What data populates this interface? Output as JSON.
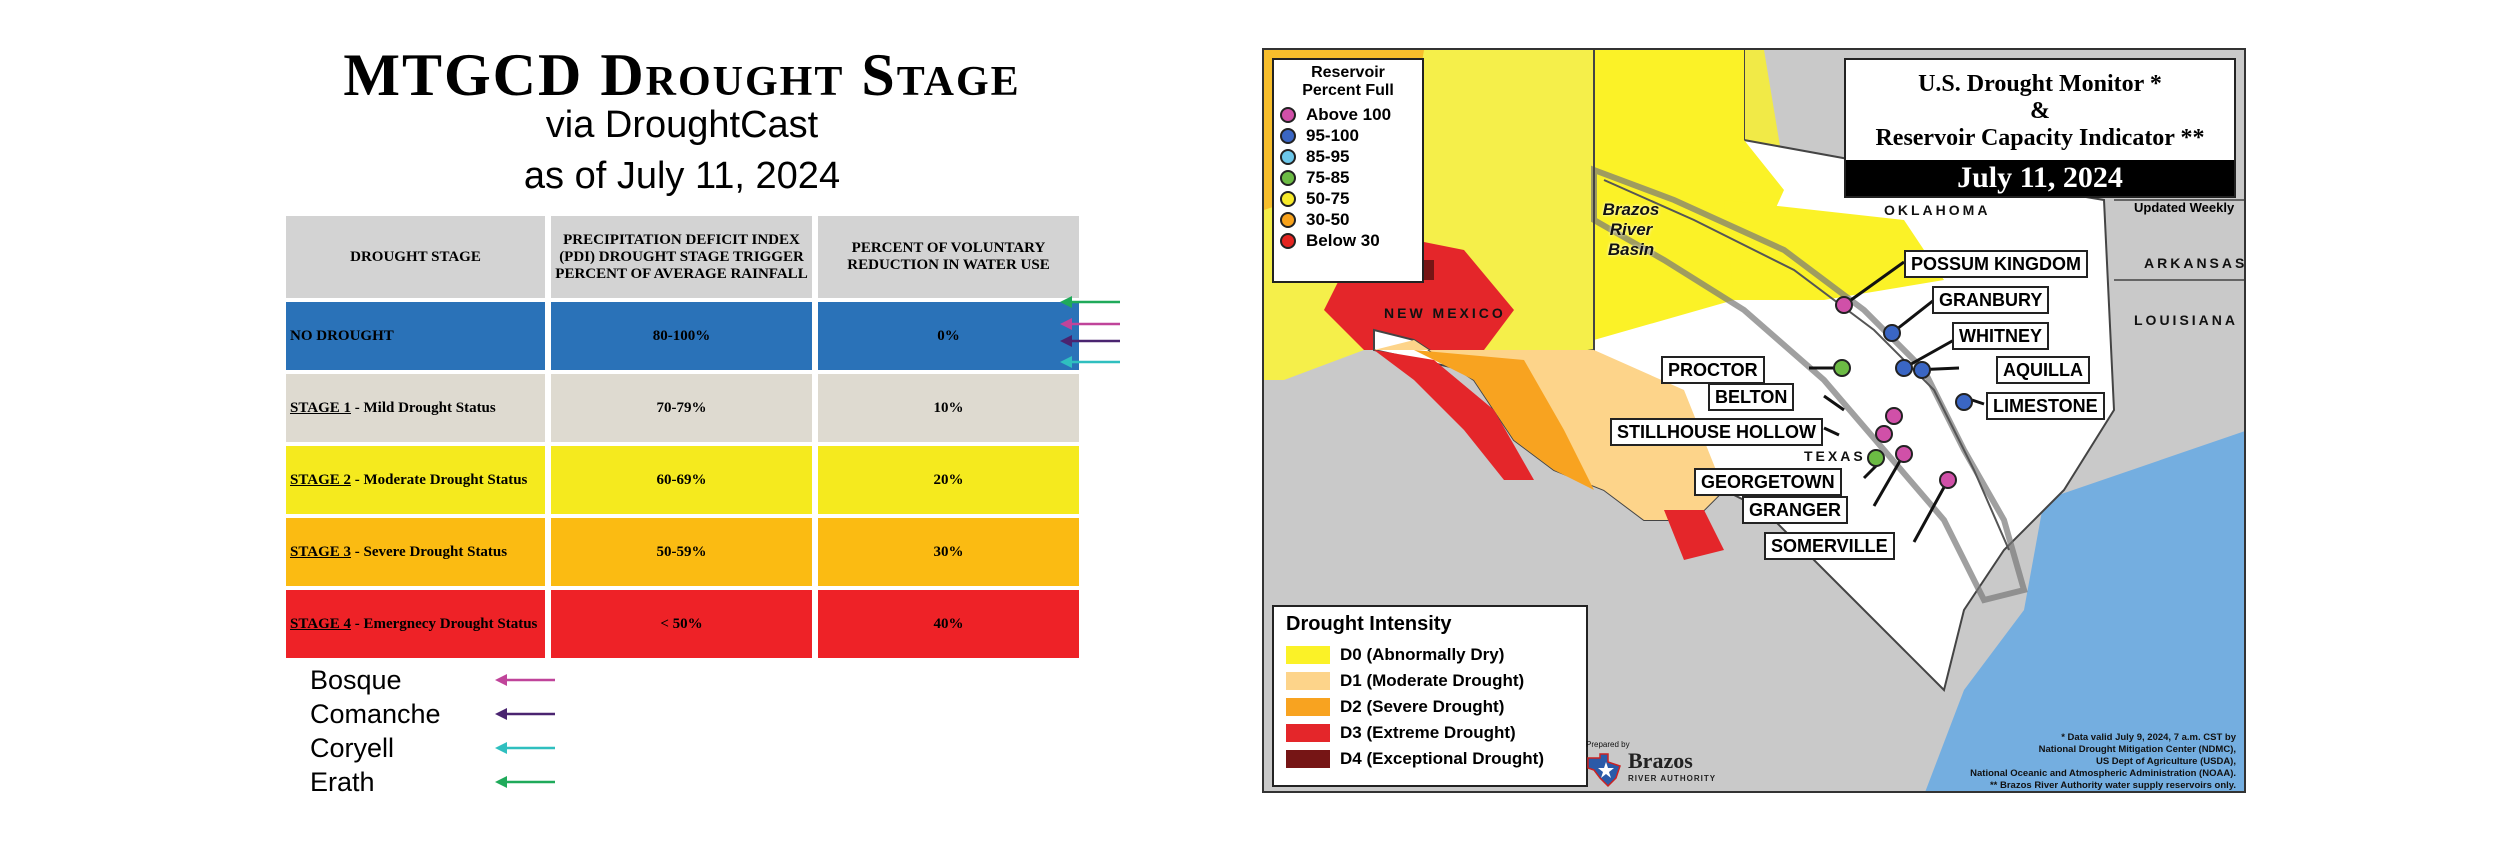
{
  "left": {
    "title": "MTGCD Drought Stage",
    "subtitle1": "via DroughtCast",
    "subtitle2": "as of July 11, 2024",
    "table": {
      "headers": [
        "DROUGHT STAGE",
        "PRECIPITATION DEFICIT INDEX (PDI) DROUGHT STAGE TRIGGER PERCENT OF AVERAGE RAINFALL",
        "PERCENT OF VOLUNTARY REDUCTION IN WATER USE"
      ],
      "rows": [
        {
          "stage": "",
          "label": "NO DROUGHT",
          "pdi": "80-100%",
          "reduction": "0%",
          "color": "#2a72b8"
        },
        {
          "stage": "STAGE 1",
          "label": " - Mild Drought Status",
          "pdi": "70-79%",
          "reduction": "10%",
          "color": "#dedad0"
        },
        {
          "stage": "STAGE 2",
          "label": " - Moderate Drought Status",
          "pdi": "60-69%",
          "reduction": "20%",
          "color": "#f5ea1e"
        },
        {
          "stage": "STAGE 3",
          "label": " - Severe Drought Status",
          "pdi": "50-59%",
          "reduction": "30%",
          "color": "#fbbb12"
        },
        {
          "stage": "STAGE 4",
          "label": " - Emergnecy Drought Status",
          "pdi": "< 50%",
          "reduction": "40%",
          "color": "#ee2227"
        }
      ]
    },
    "counties": [
      {
        "name": "Bosque",
        "color": "#c0449a"
      },
      {
        "name": "Comanche",
        "color": "#4a2470"
      },
      {
        "name": "Coryell",
        "color": "#2fbfbf"
      },
      {
        "name": "Erath",
        "color": "#1faa5a"
      }
    ]
  },
  "map": {
    "reservoir_legend": {
      "title": "Reservoir Percent Full",
      "items": [
        {
          "label": "Above 100",
          "color": "#d050a8"
        },
        {
          "label": "95-100",
          "color": "#3a66c4"
        },
        {
          "label": "85-95",
          "color": "#6cc7ea"
        },
        {
          "label": "75-85",
          "color": "#6cbb44"
        },
        {
          "label": "50-75",
          "color": "#f7ea2a"
        },
        {
          "label": "30-50",
          "color": "#f7a21b"
        },
        {
          "label": "Below 30",
          "color": "#e52521"
        }
      ]
    },
    "title": {
      "line1": "U.S. Drought Monitor *",
      "line2": "&",
      "line3": "Reservoir Capacity Indicator **",
      "date": "July 11, 2024",
      "updated": "Updated Weekly"
    },
    "states": {
      "oklahoma": "OKLAHOMA",
      "arkansas": "ARKANSAS",
      "louisiana": "LOUISIANA",
      "new_mexico": "NEW MEXICO",
      "texas": "TEXAS"
    },
    "basin": "Brazos River Basin",
    "reservoirs": [
      {
        "name": "POSSUM KINGDOM",
        "color": "#d050a8"
      },
      {
        "name": "GRANBURY",
        "color": "#3a66c4"
      },
      {
        "name": "WHITNEY",
        "color": "#3a66c4"
      },
      {
        "name": "AQUILLA",
        "color": "#3a66c4"
      },
      {
        "name": "LIMESTONE",
        "color": "#3a66c4"
      },
      {
        "name": "PROCTOR",
        "color": "#6cbb44"
      },
      {
        "name": "BELTON",
        "color": "#d050a8"
      },
      {
        "name": "STILLHOUSE HOLLOW",
        "color": "#d050a8"
      },
      {
        "name": "GEORGETOWN",
        "color": "#6cbb44"
      },
      {
        "name": "GRANGER",
        "color": "#d050a8"
      },
      {
        "name": "SOMERVILLE",
        "color": "#d050a8"
      }
    ],
    "intensity_legend": {
      "title": "Drought Intensity",
      "items": [
        {
          "label": "D0 (Abnormally Dry)",
          "color": "#fbf227"
        },
        {
          "label": "D1 (Moderate Drought)",
          "color": "#fdd48a"
        },
        {
          "label": "D2 (Severe Drought)",
          "color": "#f8a320"
        },
        {
          "label": "D3 (Extreme Drought)",
          "color": "#e4262a"
        },
        {
          "label": "D4 (Exceptional Drought)",
          "color": "#761515"
        }
      ]
    },
    "prepared_by": "Prepared by",
    "brazos": "Brazos",
    "brazos_sub": "RIVER AUTHORITY",
    "footnote": [
      "* Data valid July 9, 2024, 7 a.m. CST by",
      "National Drought Mitigation Center (NDMC),",
      "US Dept of Agriculture (USDA),",
      "National Oceanic and Atmospheric Administration (NOAA).",
      "** Brazos River Authority water supply reservoirs only."
    ]
  }
}
